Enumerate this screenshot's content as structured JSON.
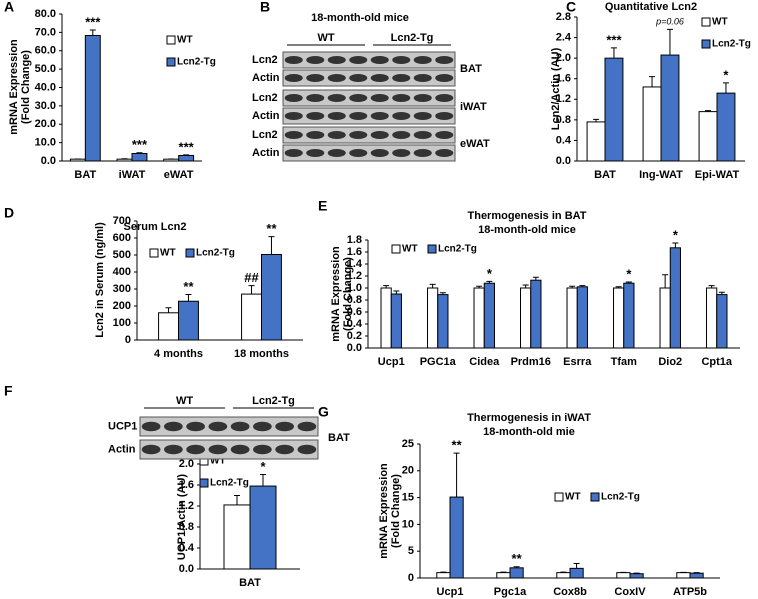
{
  "chart_data": [
    {
      "type": "bar",
      "panel": "A",
      "ylabel": [
        "mRNA Expression",
        "(Fold Change)"
      ],
      "categories": [
        "BAT",
        "iWAT",
        "eWAT"
      ],
      "series": [
        {
          "name": "WT",
          "color": "#ffffff",
          "values": [
            1.0,
            1.0,
            1.0
          ],
          "errors": [
            0.1,
            0.2,
            0.1
          ],
          "significance": [
            null,
            null,
            null
          ]
        },
        {
          "name": "Lcn2-Tg",
          "color": "#4472c4",
          "values": [
            68.3,
            4.1,
            3.0
          ],
          "errors": [
            3.0,
            0.4,
            0.3
          ],
          "significance": [
            "***",
            "***",
            "***"
          ]
        }
      ],
      "ylim": [
        0,
        80
      ],
      "yticks": [
        {
          "value": 0,
          "label": "0.0"
        },
        {
          "value": 10,
          "label": "10.0"
        },
        {
          "value": 20,
          "label": "20.0"
        },
        {
          "value": 30,
          "label": "30.0"
        },
        {
          "value": 40,
          "label": "40.0"
        },
        {
          "value": 50,
          "label": "50.0"
        },
        {
          "value": 60,
          "label": "60.0"
        },
        {
          "value": 70,
          "label": "70.0"
        },
        {
          "value": 80,
          "label": "80.0"
        }
      ]
    },
    {
      "type": "bar",
      "panel": "C",
      "title": "Quantitative Lcn2",
      "ylabel": [
        "Lcn2/Actin (AU)"
      ],
      "categories": [
        "BAT",
        "Ing-WAT",
        "Epi-WAT"
      ],
      "series": [
        {
          "name": "WT",
          "color": "#ffffff",
          "values": [
            0.76,
            1.44,
            0.96
          ],
          "errors": [
            0.05,
            0.2,
            0.02
          ],
          "significance": [
            null,
            null,
            null
          ]
        },
        {
          "name": "Lcn2-Tg",
          "color": "#4472c4",
          "values": [
            2.0,
            2.06,
            1.32
          ],
          "errors": [
            0.2,
            0.5,
            0.2
          ],
          "significance": [
            "***",
            "p=0.06",
            "*"
          ]
        }
      ],
      "ylim": [
        0,
        2.8
      ],
      "yticks": [
        {
          "value": 0,
          "label": "0.0"
        },
        {
          "value": 0.4,
          "label": "0.4"
        },
        {
          "value": 0.8,
          "label": "0.8"
        },
        {
          "value": 1.2,
          "label": "1.2"
        },
        {
          "value": 1.6,
          "label": "1.6"
        },
        {
          "value": 2.0,
          "label": "2.0"
        },
        {
          "value": 2.4,
          "label": "2.4"
        },
        {
          "value": 2.8,
          "label": "2.8"
        }
      ]
    },
    {
      "type": "bar",
      "panel": "D",
      "title": "Serum Lcn2",
      "ylabel": [
        "Lcn2 in Serum (ng/ml)"
      ],
      "categories": [
        "4 months",
        "18 months"
      ],
      "series": [
        {
          "name": "WT",
          "color": "#ffffff",
          "values": [
            160,
            270
          ],
          "errors": [
            30,
            50
          ],
          "significance": [
            null,
            "##"
          ]
        },
        {
          "name": "Lcn2-Tg",
          "color": "#4472c4",
          "values": [
            228,
            503
          ],
          "errors": [
            40,
            105
          ],
          "significance": [
            "**",
            "**"
          ]
        }
      ],
      "ylim": [
        0,
        700
      ],
      "yticks": [
        0,
        100,
        200,
        300,
        400,
        500,
        600,
        700
      ]
    },
    {
      "type": "bar",
      "panel": "E",
      "title": "Thermogenesis in BAT",
      "subtitle": "18-month-old mice",
      "ylabel": [
        "mRNA Expression",
        "(Fold Change)"
      ],
      "categories": [
        "Ucp1",
        "PGC1a",
        "Cidea",
        "Prdm16",
        "Esrra",
        "Tfam",
        "Dio2",
        "Cpt1a"
      ],
      "series": [
        {
          "name": "WT",
          "color": "#ffffff",
          "values": [
            1.0,
            1.0,
            1.0,
            1.0,
            1.0,
            1.0,
            1.0,
            1.0
          ],
          "errors": [
            0.04,
            0.06,
            0.03,
            0.05,
            0.03,
            0.02,
            0.22,
            0.04
          ],
          "significance": [
            null,
            null,
            null,
            null,
            null,
            null,
            null,
            null
          ]
        },
        {
          "name": "Lcn2-Tg",
          "color": "#4472c4",
          "values": [
            0.9,
            0.89,
            1.08,
            1.13,
            1.02,
            1.08,
            1.67,
            0.89
          ],
          "errors": [
            0.05,
            0.03,
            0.03,
            0.05,
            0.02,
            0.02,
            0.08,
            0.04
          ],
          "significance": [
            null,
            null,
            "*",
            null,
            null,
            "*",
            "*",
            null
          ]
        }
      ],
      "ylim": [
        0,
        1.8
      ],
      "yticks": [
        {
          "value": 0,
          "label": "0.0"
        },
        {
          "value": 0.2,
          "label": "0.2"
        },
        {
          "value": 0.4,
          "label": "0.4"
        },
        {
          "value": 0.6,
          "label": "0.6"
        },
        {
          "value": 0.8,
          "label": "0.8"
        },
        {
          "value": 1.0,
          "label": "1.0"
        },
        {
          "value": 1.2,
          "label": "1.2"
        },
        {
          "value": 1.4,
          "label": "1.4"
        },
        {
          "value": 1.6,
          "label": "1.6"
        },
        {
          "value": 1.8,
          "label": "1.8"
        }
      ]
    },
    {
      "type": "bar",
      "ylabel": [
        "UCP1/Actin (AU)"
      ],
      "categories": [
        "BAT"
      ],
      "series": [
        {
          "name": "WT",
          "color": "#ffffff",
          "values": [
            1.22
          ],
          "errors": [
            0.18
          ],
          "significance": [
            null
          ]
        },
        {
          "name": "Lcn2-Tg",
          "color": "#4472c4",
          "values": [
            1.58
          ],
          "errors": [
            0.22
          ],
          "significance": [
            "*"
          ]
        }
      ],
      "ylim": [
        0,
        2.0
      ],
      "yticks": [
        {
          "value": 0,
          "label": "0.0"
        },
        {
          "value": 0.4,
          "label": "0.4"
        },
        {
          "value": 0.8,
          "label": "0.8"
        },
        {
          "value": 1.2,
          "label": "1.2"
        },
        {
          "value": 1.6,
          "label": "1.6"
        },
        {
          "value": 2.0,
          "label": "2.0"
        }
      ]
    },
    {
      "type": "bar",
      "panel": "G",
      "title": "Thermogenesis in iWAT",
      "subtitle": "18-month-old mie",
      "ylabel": [
        "mRNA Expression",
        "(Fold Change)"
      ],
      "categories": [
        "Ucp1",
        "Pgc1a",
        "Cox8b",
        "CoxIV",
        "ATP5b"
      ],
      "series": [
        {
          "name": "WT",
          "color": "#ffffff",
          "values": [
            1.0,
            1.0,
            1.0,
            1.0,
            1.0
          ],
          "errors": [
            0.1,
            0.1,
            0.1,
            0.05,
            0.05
          ],
          "significance": [
            null,
            null,
            null,
            null,
            null
          ]
        },
        {
          "name": "Lcn2-Tg",
          "color": "#4472c4",
          "values": [
            15.1,
            1.9,
            1.8,
            0.8,
            0.9
          ],
          "errors": [
            8.2,
            0.2,
            0.9,
            0.1,
            0.1
          ],
          "significance": [
            "**",
            "**",
            null,
            null,
            null
          ]
        }
      ],
      "ylim": [
        0,
        25
      ],
      "yticks": [
        0,
        5,
        10,
        15,
        20,
        25
      ]
    }
  ],
  "blots": [
    {
      "panel": "B",
      "title": "18-month-old mice",
      "groups": [
        "WT",
        "Lcn2-Tg"
      ],
      "sections": [
        {
          "tissue": "BAT",
          "rows": [
            "Lcn2",
            "Actin"
          ]
        },
        {
          "tissue": "iWAT",
          "rows": [
            "Lcn2",
            "Actin"
          ]
        },
        {
          "tissue": "eWAT",
          "rows": [
            "Lcn2",
            "Actin"
          ]
        }
      ]
    },
    {
      "panel": "F",
      "groups": [
        "WT",
        "Lcn2-Tg"
      ],
      "sections": [
        {
          "tissue": "BAT",
          "rows": [
            "UCP1",
            "Actin"
          ]
        }
      ]
    }
  ]
}
